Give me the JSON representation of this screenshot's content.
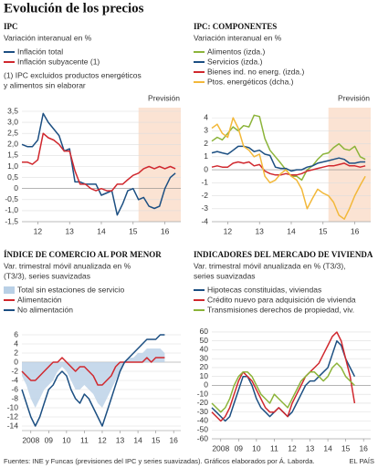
{
  "title": "Evolución de los precios",
  "footer": {
    "source": "Fuentes: INE y Funcas (previsiones del IPC y series suavizadas). Gráficos elaborados por Á. Laborda.",
    "brand": "EL PAÍS"
  },
  "chart_data": [
    {
      "type": "line",
      "title": "IPC",
      "subtitle": [
        "Variación interanual en %"
      ],
      "notes": [
        "(1) IPC excluidos productos energéticos",
        "y alimentos sin elaborar"
      ],
      "forecast": {
        "label": "Previsión",
        "from": 15.67
      },
      "x": [
        12.0,
        12.17,
        12.33,
        12.5,
        12.67,
        12.83,
        13.0,
        13.17,
        13.33,
        13.5,
        13.67,
        13.83,
        14.0,
        14.17,
        14.33,
        14.5,
        14.67,
        14.83,
        15.0,
        15.17,
        15.33,
        15.5,
        15.67,
        15.83,
        16.0,
        16.17,
        16.33,
        16.5,
        16.67,
        16.83
      ],
      "xlim": [
        12,
        17
      ],
      "xticks": [
        {
          "value": 12.5,
          "label": "12"
        },
        {
          "value": 13.5,
          "label": "13"
        },
        {
          "value": 14.5,
          "label": "14"
        },
        {
          "value": 15.5,
          "label": "15"
        },
        {
          "value": 16.5,
          "label": "16"
        }
      ],
      "ylim": [
        -1.5,
        3.5
      ],
      "yticks": [
        {
          "value": 3.5,
          "label": "3,5"
        },
        {
          "value": 3.0,
          "label": "3,0"
        },
        {
          "value": 2.5,
          "label": "2,5"
        },
        {
          "value": 2.0,
          "label": "2,0"
        },
        {
          "value": 1.5,
          "label": "1,5"
        },
        {
          "value": 1.0,
          "label": "1,0"
        },
        {
          "value": 0.5,
          "label": "0,5"
        },
        0,
        {
          "value": -0.5,
          "label": "-0,5"
        },
        {
          "value": -1.0,
          "label": "-1,0"
        },
        {
          "value": -1.5,
          "label": "-1,5"
        }
      ],
      "grid": true,
      "series": [
        {
          "name": "Inflación total",
          "color": "#1c4f82",
          "values": [
            2.0,
            1.9,
            1.9,
            2.2,
            3.4,
            3.0,
            2.7,
            2.4,
            1.7,
            1.8,
            0.3,
            0.3,
            0.2,
            0.2,
            0.2,
            -0.3,
            -0.2,
            -0.1,
            -1.2,
            -0.7,
            -0.1,
            0.0,
            -0.5,
            -0.4,
            -0.8,
            -0.9,
            -0.8,
            0.0,
            0.5,
            0.7
          ]
        },
        {
          "name": "Inflación subyacente (1)",
          "color": "#d0282e",
          "values": [
            1.2,
            1.2,
            1.1,
            1.3,
            2.5,
            2.3,
            2.2,
            2.0,
            1.7,
            1.7,
            0.8,
            0.2,
            0.2,
            0.0,
            -0.1,
            0.0,
            -0.1,
            -0.1,
            0.2,
            0.2,
            0.4,
            0.6,
            0.7,
            0.9,
            1.0,
            0.9,
            1.0,
            0.9,
            1.0,
            0.9
          ]
        }
      ]
    },
    {
      "type": "line",
      "title": "IPC: COMPONENTES",
      "subtitle": [
        "Variación interanual en %"
      ],
      "forecast": {
        "label": "Previsión",
        "from": 15.67
      },
      "x": [
        12.0,
        12.17,
        12.33,
        12.5,
        12.67,
        12.83,
        13.0,
        13.17,
        13.33,
        13.5,
        13.67,
        13.83,
        14.0,
        14.17,
        14.33,
        14.5,
        14.67,
        14.83,
        15.0,
        15.17,
        15.33,
        15.5,
        15.67,
        15.83,
        16.0,
        16.17,
        16.33,
        16.5,
        16.67,
        16.83
      ],
      "xlim": [
        12,
        17
      ],
      "xticks": [
        {
          "value": 12.5,
          "label": "12"
        },
        {
          "value": 13.5,
          "label": "13"
        },
        {
          "value": 14.5,
          "label": "14"
        },
        {
          "value": 15.5,
          "label": "15"
        },
        {
          "value": 16.5,
          "label": "16"
        }
      ],
      "ylim": [
        -4,
        4.5
      ],
      "yticks": [
        4,
        3,
        2,
        1,
        0,
        -1,
        -2,
        -3,
        -4
      ],
      "grid": true,
      "series": [
        {
          "name": "Alimentos (izda.)",
          "color": "#8cb43a",
          "values": [
            2.2,
            2.5,
            2.3,
            2.8,
            3.3,
            3.0,
            3.4,
            3.3,
            4.2,
            4.1,
            2.4,
            1.5,
            1.0,
            0.5,
            0.0,
            -0.5,
            -0.5,
            -0.8,
            0.0,
            0.3,
            0.8,
            1.2,
            1.3,
            1.7,
            2.0,
            1.6,
            1.5,
            1.8,
            1.0,
            0.8
          ]
        },
        {
          "name": "Servicios (izda.)",
          "color": "#1c4f82",
          "values": [
            1.3,
            1.4,
            1.3,
            1.2,
            1.5,
            1.8,
            1.8,
            1.7,
            1.4,
            1.5,
            1.2,
            1.1,
            0.2,
            0.1,
            0.1,
            -0.1,
            0.0,
            0.0,
            0.2,
            0.3,
            0.5,
            0.6,
            0.7,
            0.8,
            0.9,
            0.8,
            0.5,
            0.5,
            0.6,
            0.6
          ]
        },
        {
          "name": "Bienes ind. no energ. (izda.)",
          "color": "#d0282e",
          "values": [
            0.2,
            0.3,
            0.2,
            0.2,
            0.5,
            0.6,
            0.5,
            0.6,
            0.3,
            0.4,
            -0.1,
            -0.3,
            -0.4,
            -0.4,
            -0.3,
            -0.4,
            -0.4,
            -0.3,
            -0.1,
            0.0,
            0.1,
            0.2,
            0.3,
            0.3,
            0.4,
            0.5,
            0.3,
            0.3,
            0.2,
            0.3
          ]
        },
        {
          "name": "Ptos. energéticos (dcha.)",
          "color": "#f2b83a",
          "values": [
            3.2,
            3.5,
            2.8,
            2.5,
            4.0,
            3.2,
            1.8,
            1.5,
            1.0,
            1.2,
            -0.5,
            -1.0,
            -0.8,
            -0.3,
            0.0,
            -0.5,
            -0.8,
            -1.5,
            -3.0,
            -2.2,
            -1.5,
            -1.8,
            -2.0,
            -2.5,
            -3.5,
            -3.8,
            -3.0,
            -2.0,
            -1.2,
            -0.5
          ]
        }
      ]
    },
    {
      "type": "line",
      "title": "ÍNDICE DE COMERCIO AL POR MENOR",
      "subtitle": [
        "Var. trimestral móvil anualizada en %",
        "(T3/3), series suavizadas"
      ],
      "x": [
        2008.0,
        2008.25,
        2008.5,
        2008.75,
        2009.0,
        2009.25,
        2009.5,
        2009.75,
        2010.0,
        2010.25,
        2010.5,
        2010.75,
        2011.0,
        2011.25,
        2011.5,
        2011.75,
        2012.0,
        2012.25,
        2012.5,
        2012.75,
        2013.0,
        2013.25,
        2013.5,
        2013.75,
        2014.0,
        2014.25,
        2014.5,
        2014.75,
        2015.0,
        2015.25,
        2015.5,
        2015.75,
        2016.0
      ],
      "xlim": [
        2008,
        2016.9
      ],
      "xticks": [
        {
          "value": 2008.5,
          "label": "2008"
        },
        {
          "value": 2009.5,
          "label": "09"
        },
        {
          "value": 2010.5,
          "label": "10"
        },
        {
          "value": 2011.5,
          "label": "11"
        },
        {
          "value": 2012.5,
          "label": "12"
        },
        {
          "value": 2013.5,
          "label": "13"
        },
        {
          "value": 2014.5,
          "label": "14"
        },
        {
          "value": 2015.5,
          "label": "15"
        },
        {
          "value": 2016.5,
          "label": "16"
        }
      ],
      "ylim": [
        -15,
        7
      ],
      "yticks": [
        6,
        4,
        2,
        0,
        -2,
        -4,
        -6,
        -8,
        -10,
        -12,
        -14
      ],
      "grid": true,
      "series": [
        {
          "name": "Total sin estaciones de servicio",
          "color": "#b9d0e6",
          "style": "area",
          "values": [
            -3,
            -5,
            -8,
            -10,
            -8,
            -6,
            -5,
            -4,
            -2,
            -1,
            -2,
            -4,
            -6,
            -6,
            -5,
            -6,
            -7,
            -9,
            -10,
            -8,
            -6,
            -4,
            -2,
            0,
            1,
            1,
            2,
            2,
            3,
            3,
            3,
            3,
            2
          ]
        },
        {
          "name": "Alimentación",
          "color": "#d0282e",
          "values": [
            -2,
            -3,
            -4,
            -4,
            -3,
            -2,
            -1,
            0,
            0,
            1,
            0,
            -1,
            -2,
            -1,
            -1,
            -2,
            -3,
            -5,
            -5,
            -4,
            -3,
            -1,
            0,
            0,
            0,
            0,
            0,
            0,
            1,
            0,
            1,
            1,
            1
          ]
        },
        {
          "name": "No alimentación",
          "color": "#1c4f82",
          "values": [
            -6,
            -9,
            -12,
            -14,
            -12,
            -9,
            -6,
            -5,
            -3,
            -2,
            -3,
            -6,
            -8,
            -9,
            -7,
            -8,
            -10,
            -12,
            -14,
            -11,
            -8,
            -5,
            -2,
            0,
            1,
            2,
            3,
            4,
            5,
            5,
            5,
            6,
            6
          ]
        }
      ]
    },
    {
      "type": "line",
      "title": "INDICADORES DEL MERCADO DE VIVIENDA",
      "subtitle": [
        "Var. trimestral móvil anualizada en % (T3/3),",
        "series suavizadas"
      ],
      "x": [
        2008.0,
        2008.25,
        2008.5,
        2008.75,
        2009.0,
        2009.25,
        2009.5,
        2009.75,
        2010.0,
        2010.25,
        2010.5,
        2010.75,
        2011.0,
        2011.25,
        2011.5,
        2011.75,
        2012.0,
        2012.25,
        2012.5,
        2012.75,
        2013.0,
        2013.25,
        2013.5,
        2013.75,
        2014.0,
        2014.25,
        2014.5,
        2014.75,
        2015.0,
        2015.25,
        2015.5,
        2015.75,
        2016.0
      ],
      "xlim": [
        2008,
        2016.9
      ],
      "xticks": [
        {
          "value": 2008.5,
          "label": "2008"
        },
        {
          "value": 2009.5,
          "label": "09"
        },
        {
          "value": 2010.5,
          "label": "10"
        },
        {
          "value": 2011.5,
          "label": "11"
        },
        {
          "value": 2012.5,
          "label": "12"
        },
        {
          "value": 2013.5,
          "label": "13"
        },
        {
          "value": 2014.5,
          "label": "14"
        },
        {
          "value": 2015.5,
          "label": "15"
        },
        {
          "value": 2016.5,
          "label": "16"
        }
      ],
      "ylim": [
        -60,
        62
      ],
      "yticks": [
        60,
        50,
        40,
        30,
        20,
        10,
        0,
        -10,
        -20,
        -30,
        -40,
        -50,
        -60
      ],
      "grid": true,
      "series": [
        {
          "name": "Hipotecas constituidas, viviendas",
          "color": "#1c4f82",
          "values": [
            -25,
            -30,
            -35,
            -40,
            -35,
            -20,
            -5,
            10,
            10,
            0,
            -15,
            -25,
            -30,
            -35,
            -30,
            -25,
            -30,
            -35,
            -30,
            -20,
            -10,
            0,
            5,
            5,
            10,
            15,
            20,
            35,
            50,
            45,
            30,
            20,
            10
          ]
        },
        {
          "name": "Crédito nuevo para adquisición de vivienda",
          "color": "#d0282e",
          "values": [
            -30,
            -35,
            -40,
            -35,
            -25,
            -10,
            5,
            15,
            10,
            5,
            -5,
            -15,
            -25,
            -30,
            -30,
            -25,
            -30,
            -35,
            -20,
            -10,
            0,
            10,
            15,
            20,
            25,
            35,
            45,
            55,
            60,
            50,
            30,
            10,
            -20
          ]
        },
        {
          "name": "Transmisiones derechos de propiedad, viv.",
          "color": "#8cb43a",
          "values": [
            -20,
            -25,
            -30,
            -25,
            -15,
            0,
            10,
            15,
            15,
            10,
            0,
            -10,
            -15,
            -20,
            -10,
            -15,
            -20,
            -25,
            -15,
            -5,
            5,
            10,
            15,
            15,
            10,
            5,
            10,
            20,
            25,
            20,
            10,
            5,
            0
          ]
        }
      ]
    }
  ]
}
